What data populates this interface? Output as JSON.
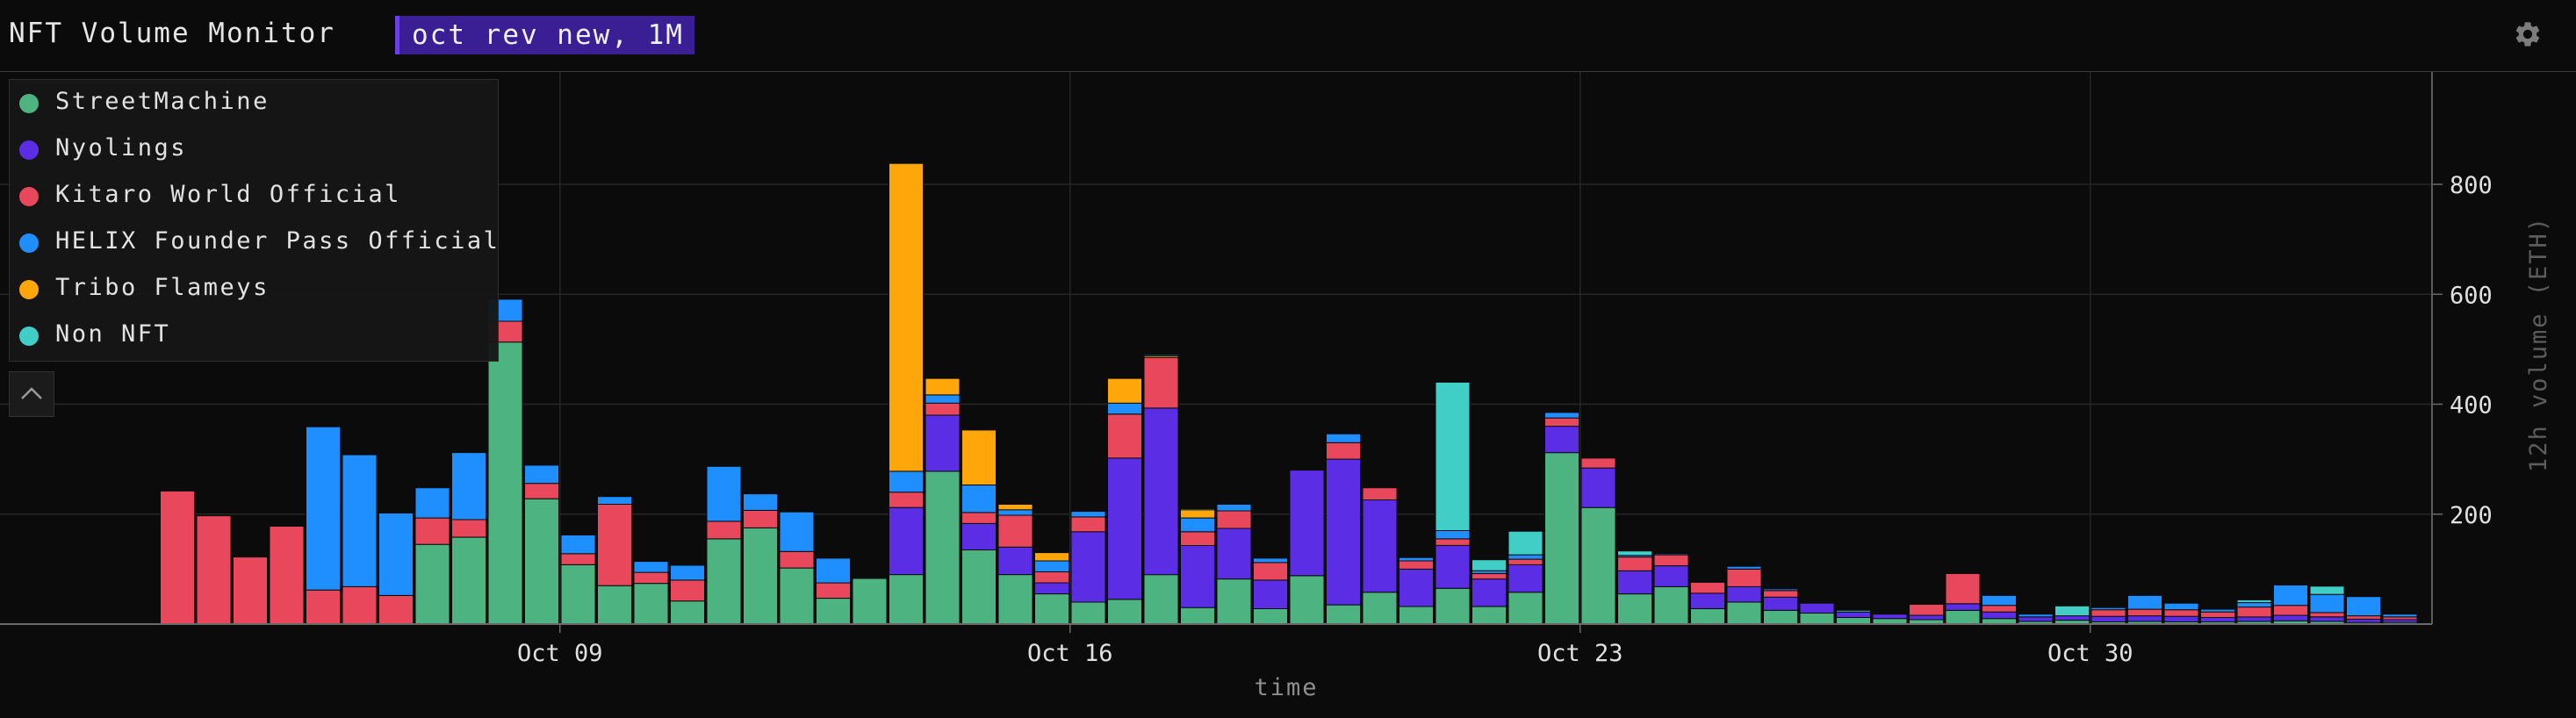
{
  "header": {
    "title": "NFT Volume Monitor",
    "query_chip": "oct rev new, 1M",
    "settings_icon": "gear-icon"
  },
  "legend": {
    "collapse_icon": "chevron-up-icon",
    "items": [
      {
        "label": "StreetMachine",
        "color": "#4db380"
      },
      {
        "label": "Nyolings",
        "color": "#5b2ee6"
      },
      {
        "label": "Kitaro World Official",
        "color": "#e8475c"
      },
      {
        "label": "HELIX Founder Pass Official",
        "color": "#1f8fff"
      },
      {
        "label": "Tribo Flameys",
        "color": "#ffa60a"
      },
      {
        "label": "Non NFT",
        "color": "#40cec6"
      }
    ]
  },
  "chart_data": {
    "type": "bar",
    "stacked": true,
    "xlabel": "time",
    "ylabel": "12h volume (ETH)",
    "ylim": [
      0,
      1000
    ],
    "yticks": [
      200,
      400,
      600,
      800
    ],
    "xlim": [
      0,
      62.8
    ],
    "xticks": [
      {
        "x": 10.5,
        "label": "Oct 09"
      },
      {
        "x": 24.5,
        "label": "Oct 16"
      },
      {
        "x": 38.5,
        "label": "Oct 23"
      },
      {
        "x": 52.5,
        "label": "Oct 30"
      }
    ],
    "grid": true,
    "legend_position": "top-left",
    "x": [
      0,
      1,
      2,
      3,
      4,
      5,
      6,
      7,
      8,
      9,
      10,
      11,
      12,
      13,
      14,
      15,
      16,
      17,
      18,
      19,
      20,
      21,
      22,
      23,
      24,
      25,
      26,
      27,
      28,
      29,
      30,
      31,
      32,
      33,
      34,
      35,
      36,
      37,
      38,
      39,
      40,
      41,
      42,
      43,
      44,
      45,
      46,
      47,
      48,
      49,
      50,
      51,
      52,
      53,
      54,
      55,
      56,
      57,
      58,
      59,
      60,
      61
    ],
    "series": [
      {
        "name": "StreetMachine",
        "color": "#4db380",
        "values": [
          0,
          0,
          0,
          0,
          0,
          0,
          0,
          145,
          158,
          513,
          228,
          108,
          70,
          74,
          42,
          155,
          175,
          102,
          47,
          83,
          90,
          278,
          135,
          90,
          55,
          40,
          45,
          90,
          30,
          82,
          28,
          88,
          35,
          58,
          32,
          65,
          32,
          58,
          312,
          212,
          55,
          68,
          28,
          40,
          25,
          20,
          12,
          10,
          8,
          25,
          10,
          5,
          7,
          4,
          5,
          4,
          4,
          5,
          6,
          5,
          3,
          3
        ]
      },
      {
        "name": "Nyolings",
        "color": "#5b2ee6",
        "values": [
          0,
          0,
          0,
          0,
          0,
          0,
          0,
          0,
          0,
          0,
          0,
          0,
          0,
          0,
          0,
          0,
          0,
          0,
          0,
          0,
          122,
          102,
          48,
          50,
          20,
          128,
          257,
          303,
          113,
          92,
          52,
          192,
          265,
          168,
          68,
          78,
          50,
          50,
          48,
          72,
          42,
          38,
          28,
          28,
          24,
          18,
          10,
          8,
          8,
          12,
          12,
          8,
          8,
          10,
          10,
          10,
          8,
          8,
          10,
          8,
          6,
          5
        ]
      },
      {
        "name": "Kitaro World Official",
        "color": "#e8475c",
        "values": [
          242,
          197,
          122,
          178,
          62,
          68,
          52,
          48,
          32,
          38,
          28,
          20,
          148,
          20,
          38,
          32,
          32,
          30,
          28,
          0,
          28,
          22,
          20,
          58,
          20,
          27,
          80,
          92,
          25,
          32,
          32,
          0,
          30,
          22,
          15,
          12,
          10,
          10,
          15,
          18,
          25,
          20,
          20,
          32,
          12,
          0,
          0,
          0,
          20,
          55,
          12,
          0,
          0,
          12,
          12,
          12,
          10,
          18,
          18,
          8,
          6,
          5
        ]
      },
      {
        "name": "HELIX Founder Pass Official",
        "color": "#1f8fff",
        "values": [
          0,
          0,
          0,
          0,
          297,
          240,
          150,
          55,
          122,
          40,
          33,
          34,
          14,
          20,
          27,
          100,
          30,
          72,
          45,
          0,
          38,
          15,
          50,
          10,
          20,
          10,
          20,
          0,
          25,
          12,
          8,
          0,
          16,
          0,
          6,
          15,
          5,
          8,
          10,
          0,
          3,
          2,
          0,
          5,
          3,
          0,
          0,
          0,
          0,
          0,
          18,
          5,
          0,
          4,
          25,
          12,
          5,
          8,
          37,
          33,
          35,
          5
        ]
      },
      {
        "name": "Tribo Flameys",
        "color": "#ffa60a",
        "values": [
          0,
          0,
          0,
          0,
          0,
          0,
          0,
          0,
          0,
          0,
          0,
          0,
          0,
          0,
          0,
          0,
          0,
          0,
          0,
          0,
          560,
          30,
          100,
          10,
          15,
          0,
          45,
          3,
          15,
          0,
          0,
          0,
          0,
          0,
          0,
          0,
          0,
          0,
          0,
          0,
          0,
          0,
          0,
          0,
          0,
          0,
          0,
          0,
          0,
          0,
          0,
          0,
          0,
          0,
          0,
          0,
          0,
          0,
          0,
          0,
          0,
          0
        ]
      },
      {
        "name": "Non NFT",
        "color": "#40cec6",
        "values": [
          0,
          0,
          0,
          0,
          0,
          0,
          0,
          0,
          0,
          0,
          0,
          0,
          0,
          0,
          0,
          0,
          0,
          0,
          0,
          0,
          0,
          0,
          0,
          0,
          0,
          0,
          0,
          2,
          2,
          0,
          0,
          0,
          0,
          0,
          0,
          270,
          20,
          43,
          0,
          0,
          8,
          0,
          0,
          0,
          0,
          0,
          3,
          0,
          0,
          0,
          0,
          0,
          18,
          0,
          0,
          0,
          0,
          5,
          0,
          15,
          0,
          0
        ]
      }
    ]
  }
}
